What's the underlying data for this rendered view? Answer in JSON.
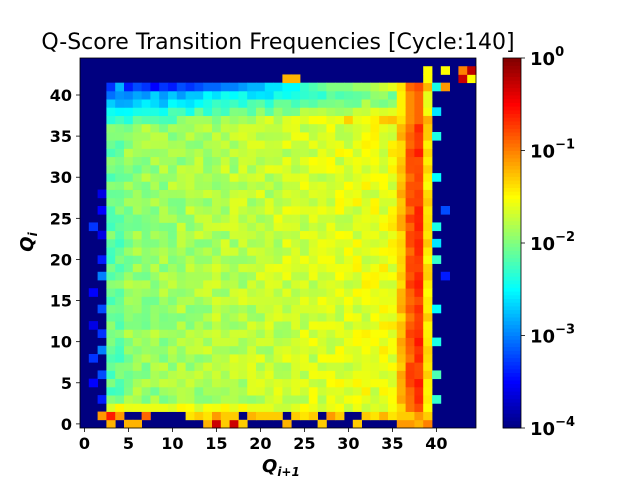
{
  "chart_data": {
    "type": "heatmap",
    "title": "Q-Score Transition Frequencies [Cycle:140]",
    "xlabel": "Q",
    "xlabel_sub": "i+1",
    "ylabel": "Q",
    "ylabel_sub": "i",
    "x_ticks": [
      "0",
      "5",
      "10",
      "15",
      "20",
      "25",
      "30",
      "35",
      "40"
    ],
    "y_ticks": [
      "0",
      "5",
      "10",
      "15",
      "20",
      "25",
      "30",
      "35",
      "40"
    ],
    "x_range": [
      -0.5,
      44.5
    ],
    "y_range": [
      -0.5,
      44.5
    ],
    "colormap": "jet",
    "color_scale": "log",
    "vmin": 0.0001,
    "vmax": 1,
    "colorbar_ticks": [
      {
        "base": "10",
        "exp": "0",
        "value": 1
      },
      {
        "base": "10",
        "exp": "−1",
        "value": 0.1
      },
      {
        "base": "10",
        "exp": "−2",
        "value": 0.01
      },
      {
        "base": "10",
        "exp": "−3",
        "value": 0.001
      },
      {
        "base": "10",
        "exp": "−4",
        "value": 0.0001
      }
    ],
    "cells_log10": {
      "format": "row y=41 to 0, columns x=0..44; cell = floor(100 * log10(freq)) + 400 encoded with base36 pairs; '--' = masked/empty (colormap floor)",
      "background_log10": -4,
      "rows": [
        {
          "y": 44,
          "cells": []
        },
        {
          "y": 43,
          "cells": [
            [
              39,
              -1.5
            ],
            [
              41,
              -1.5
            ],
            [
              43,
              -1.0
            ],
            [
              44,
              -0.25
            ]
          ]
        },
        {
          "y": 42,
          "cells": [
            [
              23,
              -1.2
            ],
            [
              24,
              -1.2
            ],
            [
              39,
              -1.5
            ],
            [
              43,
              -0.3
            ],
            [
              44,
              -1.5
            ]
          ]
        },
        {
          "y": 41,
          "cells": [
            [
              3,
              -3.3
            ],
            [
              4,
              -2.8
            ],
            [
              5,
              -3.4
            ],
            [
              6,
              -3.2
            ],
            [
              7,
              -3.3
            ],
            [
              8,
              -3.5
            ],
            [
              9,
              -3.3
            ],
            [
              10,
              -3.4
            ],
            [
              11,
              -3.2
            ],
            [
              12,
              -3.3
            ],
            [
              13,
              -3.2
            ],
            [
              14,
              -3.1
            ],
            [
              15,
              -3.1
            ],
            [
              16,
              -3.0
            ],
            [
              17,
              -3.0
            ],
            [
              18,
              -2.9
            ],
            [
              19,
              -2.8
            ],
            [
              20,
              -2.8
            ],
            [
              21,
              -2.6
            ],
            [
              22,
              -2.6
            ],
            [
              23,
              -2.5
            ],
            [
              24,
              -2.5
            ],
            [
              25,
              -2.3
            ],
            [
              26,
              -2.2
            ],
            [
              27,
              -2.1
            ],
            [
              28,
              -2.0
            ],
            [
              29,
              -2.0
            ],
            [
              30,
              -2.0
            ],
            [
              31,
              -1.9
            ],
            [
              32,
              -1.9
            ],
            [
              33,
              -1.8
            ],
            [
              34,
              -1.7
            ],
            [
              35,
              -1.6
            ],
            [
              36,
              -1.4
            ],
            [
              37,
              -0.9
            ],
            [
              38,
              -0.8
            ],
            [
              39,
              -1.2
            ],
            [
              40,
              -2.4
            ],
            [
              41,
              -1.1
            ]
          ]
        }
      ]
    },
    "model": {
      "description": "Frequency matrix reproduced approximately from image: main square region x 3..39, y 2..41; saturated band at x 37-39; low-freq top edge rows 37-41; sparse scattered cells at y=0,1 and x=1,2",
      "main_x": [
        3,
        39
      ],
      "main_y": [
        2,
        41
      ],
      "interior_log10": -1.75,
      "hot_columns": [
        {
          "x": 36,
          "log10": -1.25
        },
        {
          "x": 37,
          "log10": -0.85
        },
        {
          "x": 38,
          "log10": -0.7
        },
        {
          "x": 39,
          "log10": -1.4
        }
      ],
      "top_rows": [
        {
          "y": 41,
          "log10": -3.1
        },
        {
          "y": 40,
          "log10": -3.0
        },
        {
          "y": 39,
          "log10": -2.8
        },
        {
          "y": 38,
          "log10": -2.55
        },
        {
          "y": 37,
          "log10": -2.3
        }
      ],
      "row_2_log10": -1.6,
      "bottom_row_1": [
        [
          2,
          -1.1
        ],
        [
          3,
          -0.6
        ],
        [
          4,
          -1.1
        ],
        [
          7,
          -0.9
        ],
        [
          12,
          -1.4
        ],
        [
          13,
          -1.3
        ],
        [
          14,
          -1.4
        ],
        [
          15,
          -1.1
        ],
        [
          16,
          -1.3
        ],
        [
          17,
          -1.3
        ],
        [
          19,
          -1.2
        ],
        [
          20,
          -1.3
        ],
        [
          21,
          -1.3
        ],
        [
          22,
          -1.3
        ],
        [
          24,
          -1.3
        ],
        [
          25,
          -1.4
        ],
        [
          26,
          -1.3
        ],
        [
          28,
          -1.1
        ],
        [
          29,
          -1.3
        ],
        [
          32,
          -1.3
        ],
        [
          33,
          -1.4
        ],
        [
          34,
          -1.2
        ],
        [
          35,
          -1.4
        ],
        [
          36,
          -1.3
        ],
        [
          37,
          -1.3
        ],
        [
          38,
          -1.1
        ],
        [
          39,
          -1.3
        ]
      ],
      "bottom_row_0": [
        [
          3,
          -1.2
        ],
        [
          5,
          -1.2
        ],
        [
          6,
          -1.2
        ],
        [
          14,
          -1.2
        ],
        [
          15,
          -0.3
        ],
        [
          16,
          -1.3
        ],
        [
          17,
          -0.3
        ],
        [
          18,
          -1.3
        ],
        [
          23,
          -1.2
        ],
        [
          27,
          -1.3
        ],
        [
          31,
          -1.3
        ],
        [
          36,
          -1.1
        ],
        [
          37,
          -1.1
        ],
        [
          38,
          -1.2
        ],
        [
          39,
          -1.0
        ]
      ],
      "left_sparse": [
        [
          1,
          24,
          -3.3
        ],
        [
          1,
          16,
          -3.5
        ],
        [
          1,
          8,
          -3.3
        ],
        [
          1,
          5,
          -3.5
        ],
        [
          1,
          12,
          -3.6
        ],
        [
          2,
          20,
          -3.4
        ],
        [
          2,
          18,
          -3.0
        ],
        [
          2,
          14,
          -3.2
        ],
        [
          2,
          11,
          -3.3
        ],
        [
          2,
          9,
          -3.0
        ],
        [
          2,
          6,
          -3.2
        ],
        [
          2,
          3,
          -3.4
        ],
        [
          2,
          23,
          -3.6
        ],
        [
          2,
          26,
          -3.5
        ],
        [
          2,
          28,
          -3.6
        ]
      ],
      "right_sparse": [
        [
          40,
          38,
          -2.6
        ],
        [
          40,
          35,
          -2.4
        ],
        [
          40,
          30,
          -2.5
        ],
        [
          40,
          24,
          -2.4
        ],
        [
          40,
          22,
          -2.6
        ],
        [
          40,
          20,
          -2.3
        ],
        [
          40,
          14,
          -2.5
        ],
        [
          40,
          10,
          -2.4
        ],
        [
          40,
          6,
          -2.2
        ],
        [
          40,
          3,
          -2.3
        ],
        [
          41,
          26,
          -3.2
        ],
        [
          41,
          18,
          -3.4
        ]
      ]
    }
  }
}
